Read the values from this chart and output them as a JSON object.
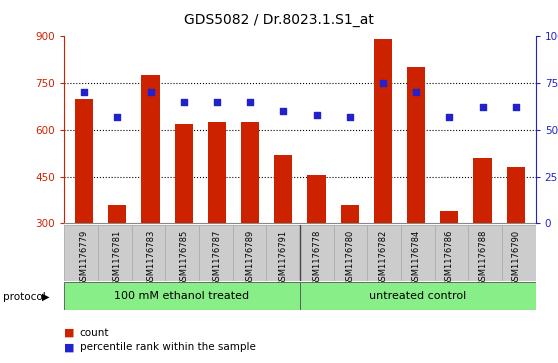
{
  "title": "GDS5082 / Dr.8023.1.S1_at",
  "samples": [
    "GSM1176779",
    "GSM1176781",
    "GSM1176783",
    "GSM1176785",
    "GSM1176787",
    "GSM1176789",
    "GSM1176791",
    "GSM1176778",
    "GSM1176780",
    "GSM1176782",
    "GSM1176784",
    "GSM1176786",
    "GSM1176788",
    "GSM1176790"
  ],
  "counts": [
    700,
    360,
    775,
    620,
    625,
    625,
    520,
    455,
    360,
    890,
    800,
    340,
    510,
    480
  ],
  "percentiles": [
    70,
    57,
    70,
    65,
    65,
    65,
    60,
    58,
    57,
    75,
    70,
    57,
    62,
    62
  ],
  "group1_label": "100 mM ethanol treated",
  "group2_label": "untreated control",
  "group1_count": 7,
  "group2_count": 7,
  "bar_color": "#cc2200",
  "dot_color": "#2222cc",
  "ylim_left": [
    300,
    900
  ],
  "ylim_right": [
    0,
    100
  ],
  "yticks_left": [
    300,
    450,
    600,
    750,
    900
  ],
  "yticks_right": [
    0,
    25,
    50,
    75,
    100
  ],
  "left_axis_color": "#cc2200",
  "right_axis_color": "#2222cc",
  "xlabel_bg": "#cccccc",
  "protocol_bg": "#88ee88",
  "legend_count_color": "#cc2200",
  "legend_pct_color": "#2222cc",
  "grid_lines": [
    450,
    600,
    750
  ]
}
